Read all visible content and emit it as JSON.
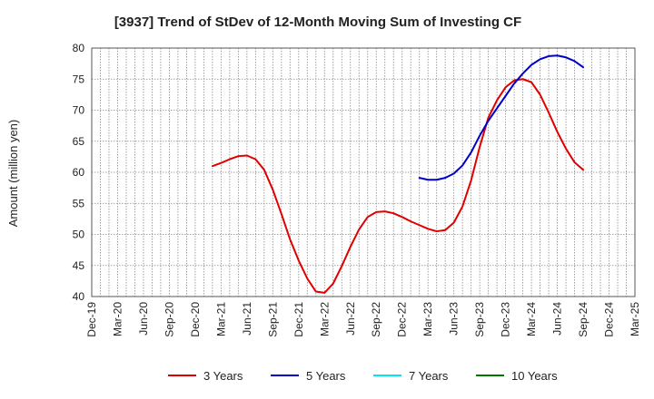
{
  "chart_data": {
    "type": "line",
    "title": "[3937]  Trend of StDev of 12-Month Moving Sum of Investing CF",
    "ylabel": "Amount (million yen)",
    "xlabel": "",
    "ylim": [
      40,
      80
    ],
    "yticks": [
      40,
      45,
      50,
      55,
      60,
      65,
      70,
      75,
      80
    ],
    "x_tick_labels": [
      "Dec-19",
      "Mar-20",
      "Jun-20",
      "Sep-20",
      "Dec-20",
      "Mar-21",
      "Jun-21",
      "Sep-21",
      "Dec-21",
      "Mar-22",
      "Jun-22",
      "Sep-22",
      "Dec-22",
      "Mar-23",
      "Jun-23",
      "Sep-23",
      "Dec-23",
      "Mar-24",
      "Jun-24",
      "Sep-24",
      "Dec-24",
      "Mar-25"
    ],
    "grid": true,
    "legend_position": "bottom",
    "series": [
      {
        "name": "3 Years",
        "color": "#e00000",
        "x": [
          "Feb-21",
          "Mar-21",
          "Apr-21",
          "May-21",
          "Jun-21",
          "Jul-21",
          "Aug-21",
          "Sep-21",
          "Oct-21",
          "Nov-21",
          "Dec-21",
          "Jan-22",
          "Feb-22",
          "Mar-22",
          "Apr-22",
          "May-22",
          "Jun-22",
          "Jul-22",
          "Aug-22",
          "Sep-22",
          "Oct-22",
          "Nov-22",
          "Dec-22",
          "Jan-23",
          "Feb-23",
          "Mar-23",
          "Apr-23",
          "May-23",
          "Jun-23",
          "Jul-23",
          "Aug-23",
          "Sep-23",
          "Oct-23",
          "Nov-23",
          "Dec-23",
          "Jan-24",
          "Feb-24",
          "Mar-24",
          "Apr-24",
          "May-24",
          "Jun-24",
          "Jul-24",
          "Aug-24",
          "Sep-24"
        ],
        "values": [
          61.0,
          61.5,
          62.1,
          62.6,
          62.7,
          62.1,
          60.4,
          57.2,
          53.3,
          49.2,
          45.8,
          42.9,
          40.8,
          40.6,
          42.1,
          44.9,
          48.0,
          50.8,
          52.8,
          53.6,
          53.7,
          53.4,
          52.8,
          52.1,
          51.5,
          50.9,
          50.5,
          50.7,
          51.9,
          54.5,
          58.7,
          64.1,
          68.8,
          71.6,
          73.7,
          74.8,
          75.0,
          74.5,
          72.5,
          69.6,
          66.5,
          63.8,
          61.6,
          60.4
        ]
      },
      {
        "name": "5 Years",
        "color": "#0000cc",
        "x": [
          "Feb-23",
          "Mar-23",
          "Apr-23",
          "May-23",
          "Jun-23",
          "Jul-23",
          "Aug-23",
          "Sep-23",
          "Oct-23",
          "Nov-23",
          "Dec-23",
          "Jan-24",
          "Feb-24",
          "Mar-24",
          "Apr-24",
          "May-24",
          "Jun-24",
          "Jul-24",
          "Aug-24",
          "Sep-24"
        ],
        "values": [
          59.1,
          58.8,
          58.8,
          59.1,
          59.8,
          61.1,
          63.2,
          65.9,
          68.3,
          70.3,
          72.3,
          74.3,
          75.9,
          77.3,
          78.2,
          78.7,
          78.8,
          78.5,
          77.9,
          76.9
        ]
      },
      {
        "name": "7 Years",
        "color": "#00e5ee",
        "x": [],
        "values": []
      },
      {
        "name": "10 Years",
        "color": "#007700",
        "x": [],
        "values": []
      }
    ]
  }
}
